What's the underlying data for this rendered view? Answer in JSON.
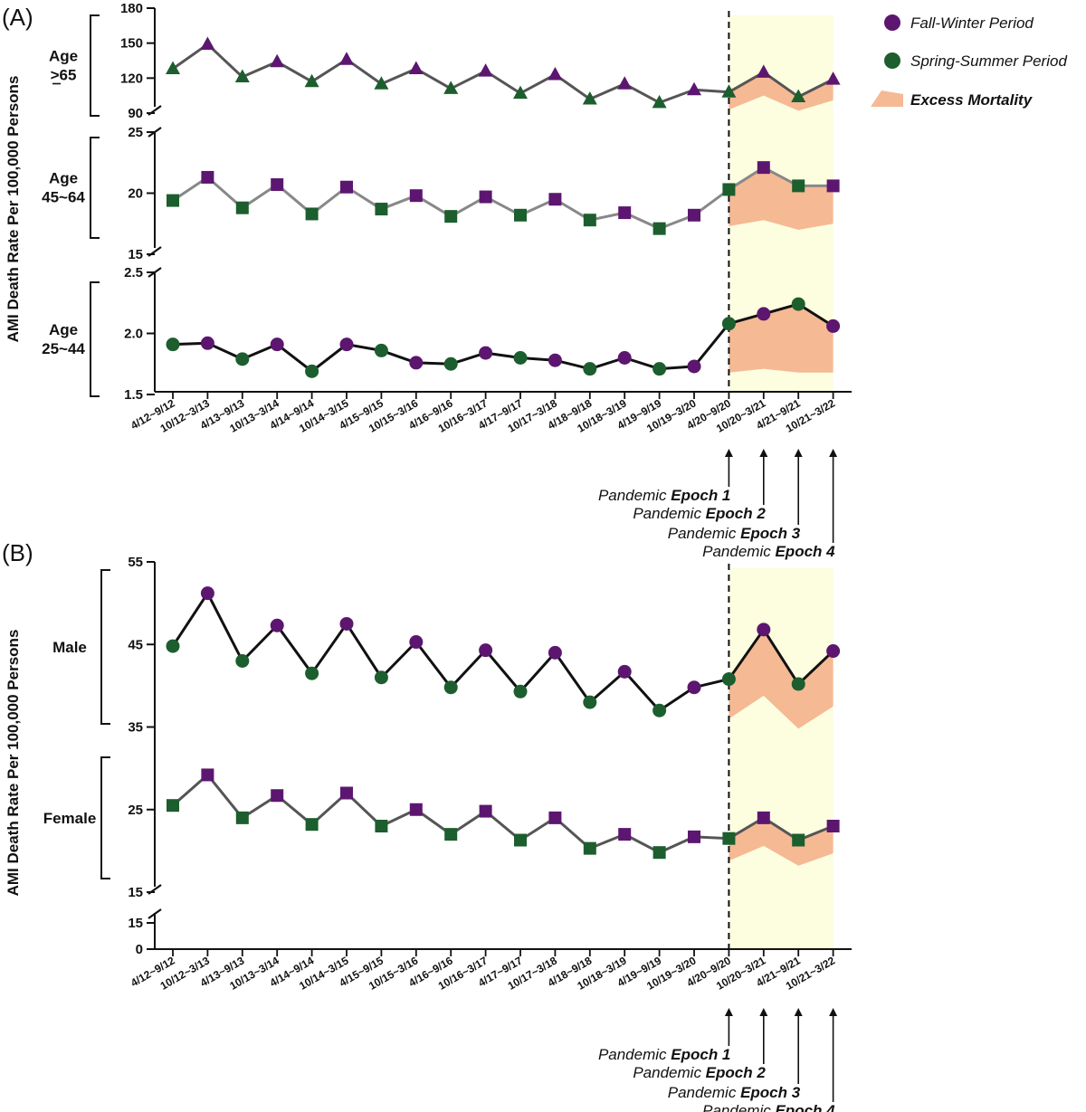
{
  "colors": {
    "fall_winter": "#5c1670",
    "spring_summer": "#1c5e2e",
    "excess_mortality": "#f5b994",
    "pandemic_shade": "#fdfde0"
  },
  "legend": {
    "fall_winter": "Fall-Winter Period",
    "spring_summer": "Spring-Summer Period",
    "excess": "Excess Mortality"
  },
  "epochs": [
    {
      "prefix": "Pandemic ",
      "bold": "Epoch 1"
    },
    {
      "prefix": "Pandemic ",
      "bold": "Epoch 2"
    },
    {
      "prefix": "Pandemic ",
      "bold": "Epoch 3"
    },
    {
      "prefix": "Pandemic ",
      "bold": "Epoch 4"
    }
  ],
  "chart_data": [
    {
      "type": "line",
      "panel": "(A)",
      "ylabel": "AMI Death Rate Per 100,000 Persons",
      "categories": [
        "4/12~9/12",
        "10/12~3/13",
        "4/13~9/13",
        "10/13~3/14",
        "4/14~9/14",
        "10/14~3/15",
        "4/15~9/15",
        "10/15~3/16",
        "4/16~9/16",
        "10/16~3/17",
        "4/17~9/17",
        "10/17~3/18",
        "4/18~9/18",
        "10/18~3/19",
        "4/19~9/19",
        "10/19~3/20",
        "4/20~9/20",
        "10/20~3/21",
        "4/21~9/21",
        "10/21~3/22"
      ],
      "period_order": [
        "spring_summer",
        "fall_winter"
      ],
      "pandemic_start_index": 16,
      "subplots": [
        {
          "group_label": [
            "Age",
            "≥65"
          ],
          "marker": "triangle",
          "line_color": "#555555",
          "yticks": [
            90,
            120,
            150,
            180
          ],
          "ylim": [
            90,
            180
          ],
          "values": [
            128,
            149,
            121,
            134,
            117,
            136,
            115,
            128,
            111,
            126,
            107,
            123,
            102,
            115,
            99,
            110,
            108,
            125,
            104,
            119
          ],
          "excess_lower": [
            93,
            105,
            92,
            101
          ]
        },
        {
          "group_label": [
            "Age",
            "45~64"
          ],
          "marker": "square",
          "line_color": "#888888",
          "yticks": [
            15,
            20,
            25
          ],
          "ylim": [
            15,
            25
          ],
          "values": [
            19.4,
            21.3,
            18.8,
            20.7,
            18.3,
            20.5,
            18.7,
            19.8,
            18.1,
            19.7,
            18.2,
            19.5,
            17.8,
            18.4,
            17.1,
            18.2,
            20.3,
            22.1,
            20.6,
            20.6
          ],
          "excess_lower": [
            17.3,
            17.8,
            17.0,
            17.5
          ]
        },
        {
          "group_label": [
            "Age",
            "25~44"
          ],
          "marker": "circle",
          "line_color": "#111111",
          "yticks": [
            1.5,
            2.0,
            2.5
          ],
          "ylim": [
            1.5,
            2.5
          ],
          "values": [
            1.91,
            1.92,
            1.79,
            1.91,
            1.69,
            1.91,
            1.86,
            1.76,
            1.75,
            1.84,
            1.8,
            1.78,
            1.71,
            1.8,
            1.71,
            1.73,
            2.08,
            2.16,
            2.24,
            2.06
          ],
          "excess_lower": [
            1.68,
            1.71,
            1.68,
            1.68
          ]
        }
      ]
    },
    {
      "type": "line",
      "panel": "(B)",
      "ylabel": "AMI Death Rate Per 100,000 Persons",
      "categories": [
        "4/12~9/12",
        "10/12~3/13",
        "4/13~9/13",
        "10/13~3/14",
        "4/14~9/14",
        "10/14~3/15",
        "4/15~9/15",
        "10/15~3/16",
        "4/16~9/16",
        "10/16~3/17",
        "4/17~9/17",
        "10/17~3/18",
        "4/18~9/18",
        "10/18~3/19",
        "4/19~9/19",
        "10/19~3/20",
        "4/20~9/20",
        "10/20~3/21",
        "4/21~9/21",
        "10/21~3/22"
      ],
      "period_order": [
        "spring_summer",
        "fall_winter"
      ],
      "pandemic_start_index": 16,
      "yticks_upper": [
        15,
        25,
        35,
        45,
        55
      ],
      "yticks_lower": [
        0,
        15
      ],
      "ylim": [
        15,
        55
      ],
      "series": [
        {
          "name": "Male",
          "marker": "circle",
          "line_color": "#111111",
          "values": [
            44.8,
            51.2,
            43.0,
            47.3,
            41.5,
            47.5,
            41.0,
            45.3,
            39.8,
            44.3,
            39.3,
            44.0,
            38.0,
            41.7,
            37.0,
            39.8,
            40.8,
            46.8,
            40.2,
            44.2
          ],
          "excess_lower": [
            36.0,
            38.8,
            34.8,
            37.5
          ]
        },
        {
          "name": "Female",
          "marker": "square",
          "line_color": "#555555",
          "values": [
            25.5,
            29.2,
            24.0,
            26.7,
            23.2,
            27.0,
            23.0,
            25.0,
            22.0,
            24.8,
            21.3,
            24.0,
            20.3,
            22.0,
            19.8,
            21.7,
            21.5,
            24.0,
            21.3,
            23.0
          ],
          "excess_lower": [
            18.8,
            20.6,
            18.2,
            19.7
          ]
        }
      ]
    }
  ]
}
